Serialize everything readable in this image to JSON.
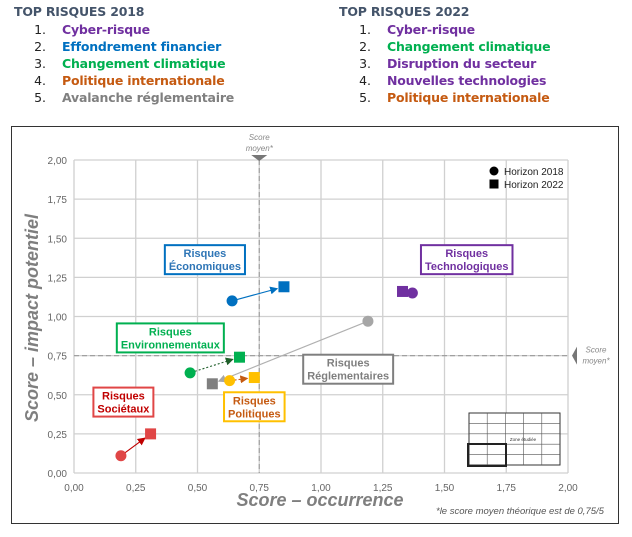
{
  "top_lists": [
    {
      "id": "2018",
      "title": "TOP RISQUES 2018",
      "items": [
        {
          "num": "1.",
          "label": "Cyber-risque",
          "color": "#7030a0"
        },
        {
          "num": "2.",
          "label": "Effondrement financier",
          "color": "#0070c0"
        },
        {
          "num": "3.",
          "label": "Changement climatique",
          "color": "#00b050"
        },
        {
          "num": "4.",
          "label": "Politique internationale",
          "color": "#c55a11"
        },
        {
          "num": "5.",
          "label": "Avalanche réglementaire",
          "color": "#808080"
        }
      ]
    },
    {
      "id": "2022",
      "title": "TOP RISQUES 2022",
      "items": [
        {
          "num": "1.",
          "label": "Cyber-risque",
          "color": "#7030a0"
        },
        {
          "num": "2.",
          "label": "Changement climatique",
          "color": "#00b050"
        },
        {
          "num": "3.",
          "label": "Disruption du secteur",
          "color": "#7030a0"
        },
        {
          "num": "4.",
          "label": "Nouvelles technologies",
          "color": "#7030a0"
        },
        {
          "num": "5.",
          "label": "Politique internationale",
          "color": "#c55a11"
        }
      ]
    }
  ],
  "chart_data": {
    "type": "scatter",
    "xlabel": "Score – occurrence",
    "ylabel": "Score – impact potentiel",
    "xlim": [
      0,
      2
    ],
    "ylim": [
      0,
      2
    ],
    "x_ticks": [
      "0,00",
      "0,25",
      "0,50",
      "0,75",
      "1,00",
      "1,25",
      "1,50",
      "1,75",
      "2,00"
    ],
    "y_ticks": [
      "0,00",
      "0,25",
      "0,50",
      "0,75",
      "1,00",
      "1,25",
      "1,50",
      "1,75",
      "2,00"
    ],
    "tick_values": [
      0,
      0.25,
      0.5,
      0.75,
      1.0,
      1.25,
      1.5,
      1.75,
      2.0
    ],
    "grid": true,
    "legend": {
      "position": "top-right",
      "entries": [
        {
          "marker": "circle",
          "label": "Horizon 2018"
        },
        {
          "marker": "square",
          "label": "Horizon 2022"
        }
      ]
    },
    "reference_lines": {
      "x": 0.75,
      "y": 0.75,
      "label_line1": "Score",
      "label_line2": "moyen*"
    },
    "footnote": "*le score moyen théorique est de 0,75/5",
    "inset_label": "Zone étudiée",
    "series": [
      {
        "name": "Risques Économiques",
        "label_lines": [
          "Risques",
          "Économiques"
        ],
        "color": "#0070c0",
        "text_color": "#2e75b6",
        "points": {
          "2018": [
            0.64,
            1.1
          ],
          "2022": [
            0.85,
            1.19
          ]
        },
        "label_at": [
          0.53,
          1.36
        ],
        "arrow": "solid"
      },
      {
        "name": "Risques Technologiques",
        "label_lines": [
          "Risques",
          "Technologiques"
        ],
        "color": "#7030a0",
        "text_color": "#7030a0",
        "points": {
          "2018": [
            1.37,
            1.15
          ],
          "2022": [
            1.33,
            1.16
          ]
        },
        "label_at": [
          1.59,
          1.36
        ],
        "arrow": "none"
      },
      {
        "name": "Risques Environnementaux",
        "label_lines": [
          "Risques",
          "Environnementaux"
        ],
        "color": "#00b050",
        "text_color": "#00b050",
        "points": {
          "2018": [
            0.47,
            0.64
          ],
          "2022": [
            0.67,
            0.74
          ]
        },
        "label_at": [
          0.39,
          0.86
        ],
        "arrow": "dotted"
      },
      {
        "name": "Risques Réglementaires",
        "label_lines": [
          "Risques",
          "Réglementaires"
        ],
        "color": "#a6a6a6",
        "text_color": "#7f7f7f",
        "points": {
          "2018": [
            1.19,
            0.97
          ],
          "2022": [
            0.56,
            0.57
          ]
        },
        "label_at": [
          1.11,
          0.66
        ],
        "arrow": "solid-thin",
        "marker_color_2022": "#7f7f7f"
      },
      {
        "name": "Risques Politiques",
        "label_lines": [
          "Risques",
          "Politiques"
        ],
        "color": "#ffc000",
        "text_color": "#c55a11",
        "points": {
          "2018": [
            0.63,
            0.59
          ],
          "2022": [
            0.73,
            0.61
          ]
        },
        "label_at": [
          0.73,
          0.42
        ],
        "arrow": "dotted",
        "arrow_color": "#c55a11"
      },
      {
        "name": "Risques Sociétaux",
        "label_lines": [
          "Risques",
          "Sociétaux"
        ],
        "color": "#e04646",
        "text_color": "#c00000",
        "points": {
          "2018": [
            0.19,
            0.11
          ],
          "2022": [
            0.31,
            0.25
          ]
        },
        "label_at": [
          0.2,
          0.45
        ],
        "arrow": "solid",
        "arrow_color": "#c00000"
      }
    ]
  }
}
